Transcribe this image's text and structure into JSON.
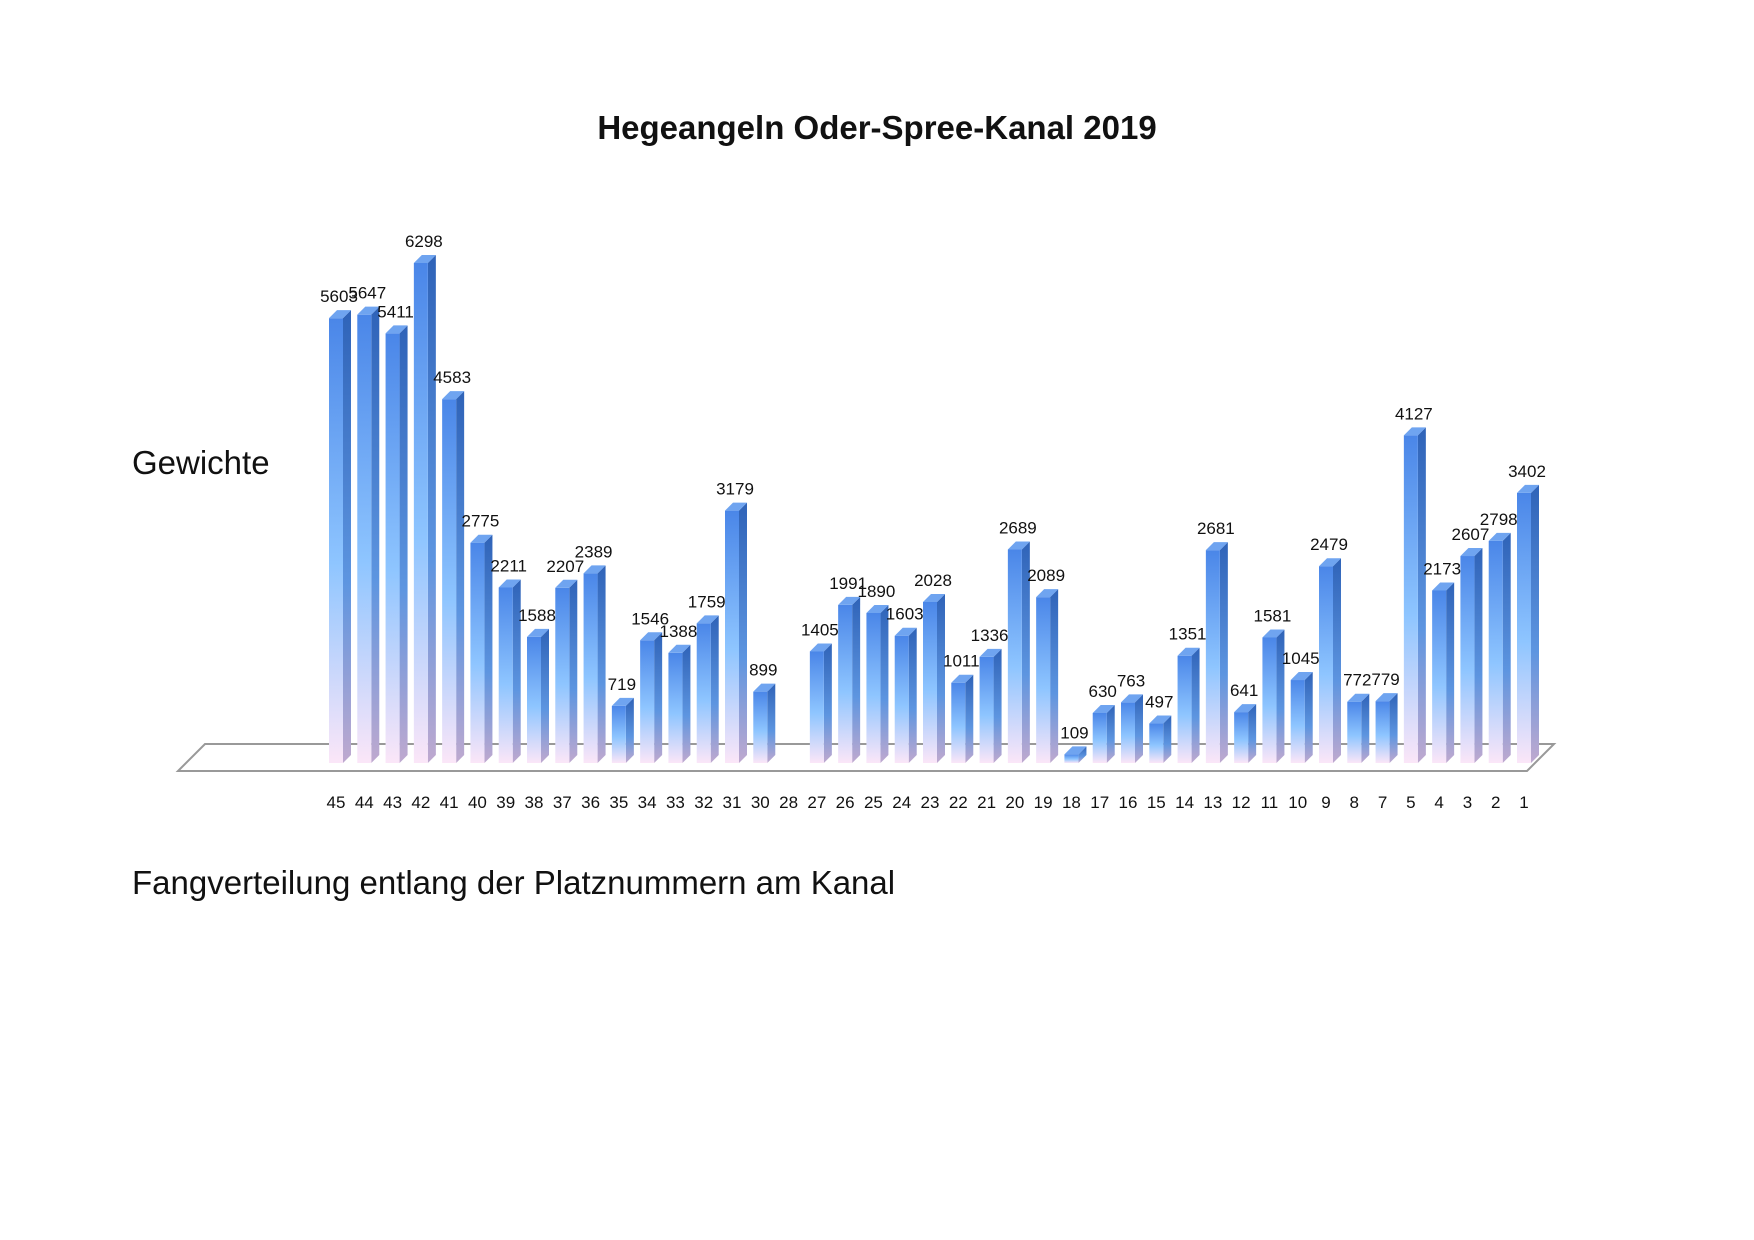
{
  "chart_data": {
    "type": "bar",
    "title": "Hegeangeln Oder-Spree-Kanal 2019",
    "ylabel": "Gewichte",
    "xlabel": "",
    "caption": "Fangverteilung entlang der Platznummern am Kanal",
    "three_d": true,
    "grid": false,
    "legend": "none",
    "ylim": [
      0,
      6500
    ],
    "categories": [
      "45",
      "44",
      "43",
      "42",
      "41",
      "40",
      "39",
      "38",
      "37",
      "36",
      "35",
      "34",
      "33",
      "32",
      "31",
      "30",
      "28",
      "27",
      "26",
      "25",
      "24",
      "23",
      "22",
      "21",
      "20",
      "19",
      "18",
      "17",
      "16",
      "15",
      "14",
      "13",
      "12",
      "11",
      "10",
      "9",
      "8",
      "7",
      "5",
      "4",
      "3",
      "2",
      "1"
    ],
    "values": [
      5603,
      5647,
      5411,
      6298,
      4583,
      2775,
      2211,
      1588,
      2207,
      2389,
      719,
      1546,
      1388,
      1759,
      3179,
      899,
      null,
      1405,
      1991,
      1890,
      1603,
      2028,
      1011,
      1336,
      2689,
      2089,
      109,
      630,
      763,
      497,
      1351,
      2681,
      641,
      1581,
      1045,
      2479,
      772,
      779,
      4127,
      2173,
      2607,
      2798,
      3402
    ],
    "colors": {
      "bar_top": "#4a86e8",
      "bar_mid": "#8ec5ff",
      "bar_bottom": "#fbe6f8",
      "bar_side": "#2f63b8",
      "floor_edge": "#999999"
    }
  }
}
